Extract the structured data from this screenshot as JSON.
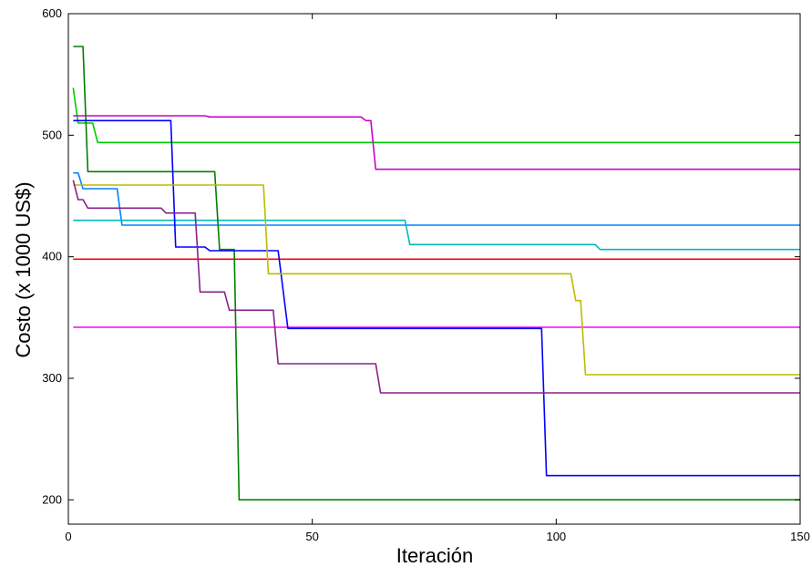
{
  "chart_data": {
    "type": "line",
    "xlabel": "Iteración",
    "ylabel": "Costo (x 1000 US$)",
    "xlim": [
      0,
      150
    ],
    "ylim": [
      180,
      600
    ],
    "xticks": [
      0,
      50,
      100,
      150
    ],
    "yticks": [
      200,
      300,
      400,
      500,
      600
    ],
    "grid": false,
    "step": true,
    "series": [
      {
        "color": "#00cc00",
        "points": [
          [
            1,
            539
          ],
          [
            2,
            510
          ],
          [
            5,
            510
          ],
          [
            6,
            494
          ],
          [
            150,
            494
          ]
        ]
      },
      {
        "color": "#cc00cc",
        "points": [
          [
            1,
            516
          ],
          [
            28,
            516
          ],
          [
            29,
            515
          ],
          [
            60,
            515
          ],
          [
            61,
            512
          ],
          [
            62,
            512
          ],
          [
            63,
            472
          ],
          [
            150,
            472
          ]
        ]
      },
      {
        "color": "#0080ff",
        "points": [
          [
            1,
            469
          ],
          [
            2,
            469
          ],
          [
            3,
            456
          ],
          [
            10,
            456
          ],
          [
            11,
            426
          ],
          [
            150,
            426
          ]
        ]
      },
      {
        "color": "#00b8b8",
        "points": [
          [
            1,
            430
          ],
          [
            69,
            430
          ],
          [
            70,
            410
          ],
          [
            108,
            410
          ],
          [
            109,
            406
          ],
          [
            150,
            406
          ]
        ]
      },
      {
        "color": "#ff0000",
        "points": [
          [
            1,
            398
          ],
          [
            150,
            398
          ]
        ]
      },
      {
        "color": "#ff00ff",
        "points": [
          [
            1,
            342
          ],
          [
            150,
            342
          ]
        ]
      },
      {
        "color": "#008000",
        "points": [
          [
            1,
            573
          ],
          [
            3,
            573
          ],
          [
            4,
            470
          ],
          [
            30,
            470
          ],
          [
            31,
            406
          ],
          [
            34,
            406
          ],
          [
            35,
            200
          ],
          [
            150,
            200
          ]
        ]
      },
      {
        "color": "#0000ff",
        "points": [
          [
            1,
            512
          ],
          [
            21,
            512
          ],
          [
            22,
            408
          ],
          [
            28,
            408
          ],
          [
            29,
            405
          ],
          [
            43,
            405
          ],
          [
            45,
            341
          ],
          [
            97,
            341
          ],
          [
            98,
            220
          ],
          [
            150,
            220
          ]
        ]
      },
      {
        "color": "#bbbb00",
        "points": [
          [
            1,
            459
          ],
          [
            40,
            459
          ],
          [
            41,
            386
          ],
          [
            103,
            386
          ],
          [
            104,
            364
          ],
          [
            105,
            364
          ],
          [
            106,
            303
          ],
          [
            150,
            303
          ]
        ]
      },
      {
        "color": "#882288",
        "points": [
          [
            1,
            463
          ],
          [
            2,
            447
          ],
          [
            3,
            447
          ],
          [
            4,
            440
          ],
          [
            19,
            440
          ],
          [
            20,
            436
          ],
          [
            26,
            436
          ],
          [
            27,
            371
          ],
          [
            32,
            371
          ],
          [
            33,
            356
          ],
          [
            42,
            356
          ],
          [
            43,
            312
          ],
          [
            63,
            312
          ],
          [
            64,
            288
          ],
          [
            150,
            288
          ]
        ]
      }
    ]
  }
}
